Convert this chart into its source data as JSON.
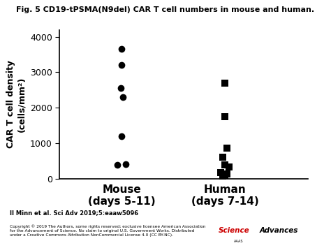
{
  "title": "Fig. 5 CD19-tPSMA(N9del) CAR T cell numbers in mouse and human.",
  "ylabel_line1": "CAR T cell density",
  "ylabel_line2": "(cells/mm²)",
  "mouse_label": "Mouse\n(days 5-11)",
  "human_label": "Human\n(days 7-14)",
  "mouse_x": 1,
  "human_x": 2,
  "mouse_values": [
    3650,
    3200,
    2560,
    2300,
    1200,
    380,
    415
  ],
  "mouse_jitter": [
    0,
    0,
    -0.01,
    0.01,
    0,
    -0.04,
    0.04
  ],
  "human_values": [
    2700,
    1750,
    850,
    600,
    380,
    320,
    160,
    130,
    80,
    100
  ],
  "human_jitter": [
    0,
    0,
    0.02,
    -0.02,
    0.0,
    0.04,
    -0.04,
    0.02,
    -0.02,
    0.0
  ],
  "mouse_marker": "o",
  "human_marker": "s",
  "marker_color": "black",
  "marker_size": 7,
  "ylim": [
    0,
    4200
  ],
  "yticks": [
    0,
    1000,
    2000,
    3000,
    4000
  ],
  "xlim": [
    0.4,
    2.8
  ],
  "xticks": [
    1,
    2
  ],
  "citation": "II Minn et al. Sci Adv 2019;5:eaaw5096",
  "copyright": "Copyright © 2019 The Authors, some rights reserved; exclusive licensee American Association\nfor the Advancement of Science. No claim to original U.S. Government Works. Distributed\nunder a Creative Commons Attribution NonCommercial License 4.0 (CC BY-NC).",
  "background_color": "#ffffff",
  "title_fontsize": 8,
  "tick_fontsize": 9,
  "label_fontsize": 9,
  "xticklabel_fontsize": 11
}
